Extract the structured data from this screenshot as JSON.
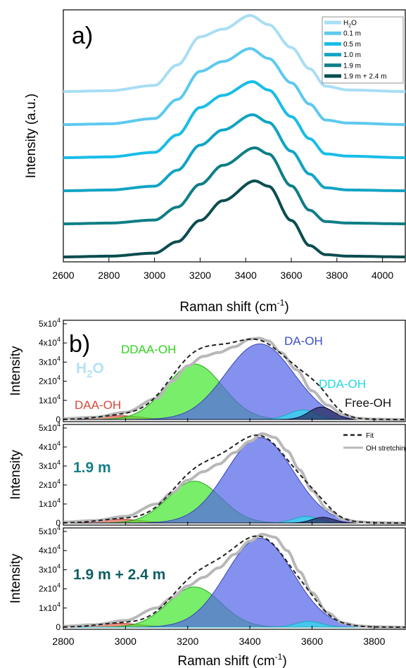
{
  "chart_data": [
    {
      "panel": "a)",
      "type": "line",
      "xlabel": "Raman shift (cm",
      "xlabel_sup": "-1",
      "xlabel_end": ")",
      "ylabel": "Intensity (a.u.)",
      "xlim": [
        2600,
        4100
      ],
      "xticks": [
        2600,
        2800,
        3000,
        3200,
        3400,
        3600,
        3800,
        4000
      ],
      "legend_position": "top-right",
      "series": [
        {
          "label_main": "H",
          "label_sub": "2",
          "label_end": "O",
          "color": "#a8def5",
          "offset": 5,
          "points": [
            [
              2600,
              0.0
            ],
            [
              2800,
              0.01
            ],
            [
              3000,
              0.08
            ],
            [
              3100,
              0.35
            ],
            [
              3200,
              0.72
            ],
            [
              3300,
              0.82
            ],
            [
              3420,
              1.0
            ],
            [
              3500,
              0.88
            ],
            [
              3600,
              0.58
            ],
            [
              3680,
              0.3
            ],
            [
              3750,
              0.07
            ],
            [
              3850,
              0.02
            ],
            [
              4100,
              0.0
            ]
          ]
        },
        {
          "label_main": "0.1 m",
          "color": "#5ec9ef",
          "offset": 4,
          "points": [
            [
              2600,
              0.0
            ],
            [
              2800,
              0.01
            ],
            [
              3000,
              0.08
            ],
            [
              3100,
              0.33
            ],
            [
              3200,
              0.7
            ],
            [
              3300,
              0.83
            ],
            [
              3420,
              1.0
            ],
            [
              3500,
              0.87
            ],
            [
              3600,
              0.55
            ],
            [
              3680,
              0.27
            ],
            [
              3750,
              0.06
            ],
            [
              3850,
              0.02
            ],
            [
              4100,
              0.0
            ]
          ]
        },
        {
          "label_main": "0.5 m",
          "color": "#18bde8",
          "offset": 3,
          "points": [
            [
              2600,
              0.0
            ],
            [
              2800,
              0.01
            ],
            [
              3000,
              0.07
            ],
            [
              3100,
              0.3
            ],
            [
              3200,
              0.66
            ],
            [
              3300,
              0.82
            ],
            [
              3430,
              1.0
            ],
            [
              3500,
              0.89
            ],
            [
              3600,
              0.54
            ],
            [
              3680,
              0.25
            ],
            [
              3750,
              0.05
            ],
            [
              3850,
              0.02
            ],
            [
              4100,
              0.0
            ]
          ]
        },
        {
          "label_main": "1.0 m",
          "color": "#10a4c4",
          "offset": 2,
          "points": [
            [
              2600,
              0.0
            ],
            [
              2800,
              0.01
            ],
            [
              3000,
              0.06
            ],
            [
              3100,
              0.27
            ],
            [
              3200,
              0.6
            ],
            [
              3300,
              0.8
            ],
            [
              3430,
              1.0
            ],
            [
              3500,
              0.9
            ],
            [
              3600,
              0.52
            ],
            [
              3680,
              0.22
            ],
            [
              3750,
              0.04
            ],
            [
              3850,
              0.01
            ],
            [
              4100,
              0.0
            ]
          ]
        },
        {
          "label_main": "1.9 m",
          "color": "#0e7e87",
          "offset": 1,
          "points": [
            [
              2600,
              0.0
            ],
            [
              2800,
              0.01
            ],
            [
              3000,
              0.05
            ],
            [
              3100,
              0.22
            ],
            [
              3200,
              0.52
            ],
            [
              3300,
              0.77
            ],
            [
              3440,
              1.0
            ],
            [
              3500,
              0.92
            ],
            [
              3600,
              0.5
            ],
            [
              3680,
              0.18
            ],
            [
              3750,
              0.03
            ],
            [
              3850,
              0.01
            ],
            [
              4100,
              0.0
            ]
          ]
        },
        {
          "label_main": "1.9 m + 2.4 m",
          "color": "#0a4d4f",
          "offset": 0,
          "points": [
            [
              2600,
              0.0
            ],
            [
              2800,
              0.01
            ],
            [
              3000,
              0.05
            ],
            [
              3100,
              0.2
            ],
            [
              3200,
              0.48
            ],
            [
              3300,
              0.74
            ],
            [
              3440,
              1.0
            ],
            [
              3500,
              0.93
            ],
            [
              3600,
              0.48
            ],
            [
              3680,
              0.15
            ],
            [
              3750,
              0.03
            ],
            [
              3850,
              0.01
            ],
            [
              4100,
              0.0
            ]
          ]
        }
      ]
    },
    {
      "panel": "b)",
      "type": "area",
      "xlabel": "Raman shift (cm",
      "xlabel_sup": "-1",
      "xlabel_end": ")",
      "ylabel": "Intensity",
      "xlim": [
        2800,
        3900
      ],
      "ylim": [
        0,
        50000
      ],
      "xticks": [
        2800,
        3000,
        3200,
        3400,
        3600,
        3800
      ],
      "yticks": [
        {
          "value": 0,
          "label": "0",
          "exp": ""
        },
        {
          "value": 10000,
          "label": "1x10",
          "exp": "4"
        },
        {
          "value": 20000,
          "label": "2x10",
          "exp": "4"
        },
        {
          "value": 30000,
          "label": "3x10",
          "exp": "4"
        },
        {
          "value": 40000,
          "label": "4x10",
          "exp": "4"
        },
        {
          "value": 50000,
          "label": "5x10",
          "exp": "4"
        }
      ],
      "legend": [
        {
          "label": "Fit",
          "color": "#222222",
          "style": "dashed"
        },
        {
          "label": "OH stretching band",
          "color": "#b8b8b8",
          "style": "solid"
        }
      ],
      "component_labels": [
        {
          "text": "DAA-OH",
          "color": "#d9473a"
        },
        {
          "text": "DDAA-OH",
          "color": "#2fd21e"
        },
        {
          "text": "DA-OH",
          "color": "#3b4fc8"
        },
        {
          "text": "DDA-OH",
          "color": "#20d6e6"
        },
        {
          "text": "Free-OH",
          "color": "#111111"
        }
      ],
      "component_colors": {
        "DAA": {
          "fill": "#e06050",
          "stroke": "#b23a2c"
        },
        "DDAA": {
          "fill": "#45e830",
          "stroke": "#2aa61a"
        },
        "DA": {
          "fill": "#5666e8",
          "stroke": "#3545b6"
        },
        "DDA": {
          "fill": "#2fdcf0",
          "stroke": "#18a9bb"
        },
        "Free": {
          "fill": "#25295a",
          "stroke": "#0c0e2a"
        }
      },
      "subplots": [
        {
          "sample_main": "H",
          "sample_sub": "2",
          "sample_end": "O",
          "sample_color": "#b5e2f5",
          "band_points": [
            [
              2800,
              500
            ],
            [
              2900,
              1200
            ],
            [
              3000,
              3800
            ],
            [
              3100,
              11000
            ],
            [
              3150,
              20000
            ],
            [
              3200,
              28000
            ],
            [
              3250,
              33000
            ],
            [
              3300,
              35000
            ],
            [
              3350,
              38000
            ],
            [
              3400,
              42000
            ],
            [
              3430,
              42500
            ],
            [
              3460,
              41000
            ],
            [
              3500,
              35000
            ],
            [
              3550,
              26000
            ],
            [
              3600,
              15000
            ],
            [
              3650,
              7500
            ],
            [
              3700,
              2500
            ],
            [
              3750,
              600
            ],
            [
              3800,
              200
            ],
            [
              3900,
              0
            ]
          ],
          "components": [
            {
              "name": "DAA",
              "center": 2980,
              "amplitude": 2000,
              "sigma": 70
            },
            {
              "name": "DDAA",
              "center": 3222,
              "amplitude": 29000,
              "sigma": 90
            },
            {
              "name": "DA",
              "center": 3432,
              "amplitude": 39500,
              "sigma": 110
            },
            {
              "name": "DDA",
              "center": 3570,
              "amplitude": 5000,
              "sigma": 45
            },
            {
              "name": "Free",
              "center": 3630,
              "amplitude": 6500,
              "sigma": 40
            }
          ]
        },
        {
          "sample_main": "1.9 m",
          "sample_color": "#167e88",
          "band_points": [
            [
              2800,
              500
            ],
            [
              2900,
              1300
            ],
            [
              3000,
              3500
            ],
            [
              3100,
              10000
            ],
            [
              3150,
              16000
            ],
            [
              3200,
              22500
            ],
            [
              3250,
              27000
            ],
            [
              3300,
              31000
            ],
            [
              3350,
              37000
            ],
            [
              3400,
              43000
            ],
            [
              3440,
              47000
            ],
            [
              3480,
              45000
            ],
            [
              3520,
              38000
            ],
            [
              3560,
              28000
            ],
            [
              3600,
              17000
            ],
            [
              3650,
              7000
            ],
            [
              3700,
              2000
            ],
            [
              3750,
              600
            ],
            [
              3800,
              200
            ],
            [
              3900,
              0
            ]
          ],
          "components": [
            {
              "name": "DAA",
              "center": 2980,
              "amplitude": 2000,
              "sigma": 70
            },
            {
              "name": "DDAA",
              "center": 3222,
              "amplitude": 22000,
              "sigma": 85
            },
            {
              "name": "DA",
              "center": 3432,
              "amplitude": 45000,
              "sigma": 108
            },
            {
              "name": "DDA",
              "center": 3580,
              "amplitude": 3500,
              "sigma": 40
            },
            {
              "name": "Free",
              "center": 3635,
              "amplitude": 3000,
              "sigma": 35
            }
          ]
        },
        {
          "sample_main": "1.9 m + 2.4 m",
          "sample_color": "#0f5f63",
          "band_points": [
            [
              2800,
              500
            ],
            [
              2900,
              1300
            ],
            [
              3000,
              3500
            ],
            [
              3100,
              10000
            ],
            [
              3150,
              15500
            ],
            [
              3200,
              21500
            ],
            [
              3250,
              26000
            ],
            [
              3300,
              31000
            ],
            [
              3350,
              38000
            ],
            [
              3400,
              45000
            ],
            [
              3440,
              48500
            ],
            [
              3480,
              47000
            ],
            [
              3520,
              40000
            ],
            [
              3560,
              29000
            ],
            [
              3600,
              18000
            ],
            [
              3650,
              7500
            ],
            [
              3700,
              2200
            ],
            [
              3750,
              700
            ],
            [
              3800,
              200
            ],
            [
              3900,
              0
            ]
          ],
          "components": [
            {
              "name": "DAA",
              "center": 2980,
              "amplitude": 2000,
              "sigma": 70
            },
            {
              "name": "DDAA",
              "center": 3222,
              "amplitude": 21000,
              "sigma": 85
            },
            {
              "name": "DA",
              "center": 3432,
              "amplitude": 46500,
              "sigma": 108
            },
            {
              "name": "DDA",
              "center": 3590,
              "amplitude": 3000,
              "sigma": 42
            }
          ]
        }
      ]
    }
  ]
}
